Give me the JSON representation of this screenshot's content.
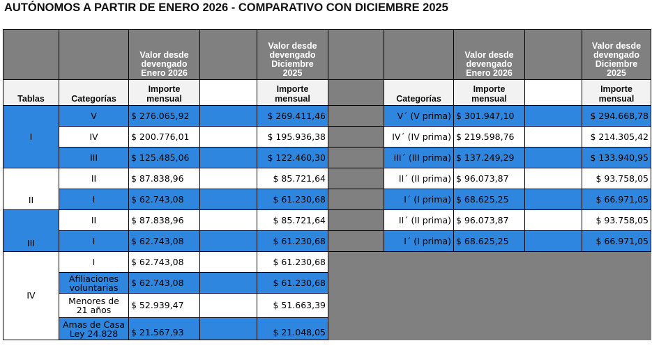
{
  "title": "AUTÓNOMOS A PARTIR DE ENERO 2026 - COMPARATIVO CON DICIEMBRE 2025",
  "headers": {
    "enero_line1": "Valor desde",
    "enero_line2": "devengado",
    "enero_line3": "Enero 2026",
    "dic_line1": "Valor desde",
    "dic_line2": "devengado",
    "dic_line3": "Diciembre",
    "dic_line4": "2025",
    "tablas": "Tablas",
    "categorias": "Categorías",
    "importe_line1": "Importe",
    "importe_line2": "mensual"
  },
  "colors": {
    "blue": "#2e86de",
    "gray": "#808080",
    "header_light": "#f2f2f2"
  },
  "rows": [
    {
      "tabla": "I",
      "cat": "V",
      "ene": "$ 276.065,92",
      "dic": "$ 269.411,46",
      "cat_prima": "V´ (V prima)",
      "ene_prima": "$ 301.947,10",
      "dic_prima": "$ 294.668,78"
    },
    {
      "tabla": "",
      "cat": "IV",
      "ene": "$ 200.776,01",
      "dic": "$ 195.936,38",
      "cat_prima": "IV´ (IV prima)",
      "ene_prima": "$ 219.598,76",
      "dic_prima": "$ 214.305,42"
    },
    {
      "tabla": "",
      "cat": "III",
      "ene": "$ 125.485,06",
      "dic": "$ 122.460,30",
      "cat_prima": "III´ (III prima)",
      "ene_prima": "$ 137.249,29",
      "dic_prima": "$ 133.940,95"
    },
    {
      "tabla": "II",
      "cat": "II",
      "ene": "$ 87.838,96",
      "dic": "$ 85.721,64",
      "cat_prima": "II´ (II prima)",
      "ene_prima": "$ 96.073,87",
      "dic_prima": "$ 93.758,05"
    },
    {
      "tabla": "",
      "cat": "I",
      "ene": "$ 62.743,08",
      "dic": "$ 61.230,68",
      "cat_prima": "I´ (I prima)",
      "ene_prima": "$ 68.625,25",
      "dic_prima": "$ 66.971,05"
    },
    {
      "tabla": "III",
      "cat": "II",
      "ene": "$ 87.838,96",
      "dic": "$ 85.721,64",
      "cat_prima": "II´ (II prima)",
      "ene_prima": "$ 96.073,87",
      "dic_prima": "$ 93.758,05"
    },
    {
      "tabla": "",
      "cat": "I",
      "ene": "$ 62.743,08",
      "dic": "$ 61.230,68",
      "cat_prima": "I´ (I prima)",
      "ene_prima": "$ 68.625,25",
      "dic_prima": "$ 66.971,05"
    },
    {
      "tabla": "IV",
      "cat": "I",
      "ene": "$ 62.743,08",
      "dic": "$ 61.230,68"
    },
    {
      "tabla": "",
      "cat_line1": "Afiliaciones",
      "cat_line2": "voluntarias",
      "ene": "$ 62.743,08",
      "dic": "$ 61.230,68"
    },
    {
      "tabla": "",
      "cat_line1": "Menores de",
      "cat_line2": "21 años",
      "ene": "$ 52.939,47",
      "dic": "$ 51.663,39"
    },
    {
      "tabla": "",
      "cat_line1": "Amas de Casa",
      "cat_line2": "Ley 24.828",
      "ene": "$ 21.567,93",
      "dic": "$ 21.048,05"
    }
  ]
}
